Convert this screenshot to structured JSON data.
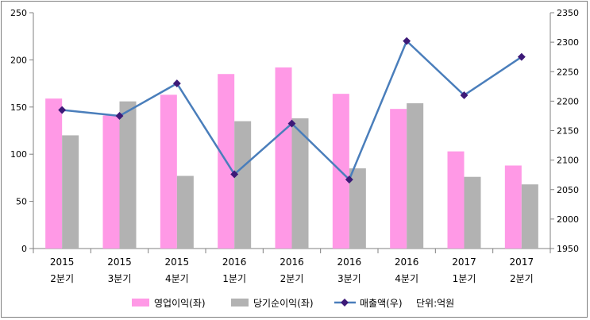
{
  "chart_data": {
    "type": "bar",
    "categories": [
      [
        "2015",
        "2분기"
      ],
      [
        "2015",
        "3분기"
      ],
      [
        "2015",
        "4분기"
      ],
      [
        "2016",
        "1분기"
      ],
      [
        "2016",
        "2분기"
      ],
      [
        "2016",
        "3분기"
      ],
      [
        "2016",
        "4분기"
      ],
      [
        "2017",
        "1분기"
      ],
      [
        "2017",
        "2분기"
      ]
    ],
    "series": [
      {
        "name": "영업이익(좌)",
        "type": "bar",
        "axis": "left",
        "color": "#FF99E6",
        "values": [
          159,
          141,
          163,
          185,
          192,
          164,
          148,
          103,
          88
        ]
      },
      {
        "name": "당기순이익(좌)",
        "type": "bar",
        "axis": "left",
        "color": "#B2B2B2",
        "values": [
          120,
          156,
          77,
          135,
          138,
          85,
          154,
          76,
          68
        ]
      },
      {
        "name": "매출액(우)",
        "type": "line",
        "axis": "right",
        "color": "#4A7EBB",
        "marker_color": "#3D1A78",
        "values": [
          2185,
          2175,
          2230,
          2076,
          2162,
          2067,
          2302,
          2210,
          2275
        ]
      }
    ],
    "y_left": {
      "min": 0,
      "max": 250,
      "step": 50
    },
    "y_right": {
      "min": 1950,
      "max": 2350,
      "step": 50
    },
    "unit_note": "단위:억원",
    "legend_position": "bottom",
    "grid": false
  }
}
